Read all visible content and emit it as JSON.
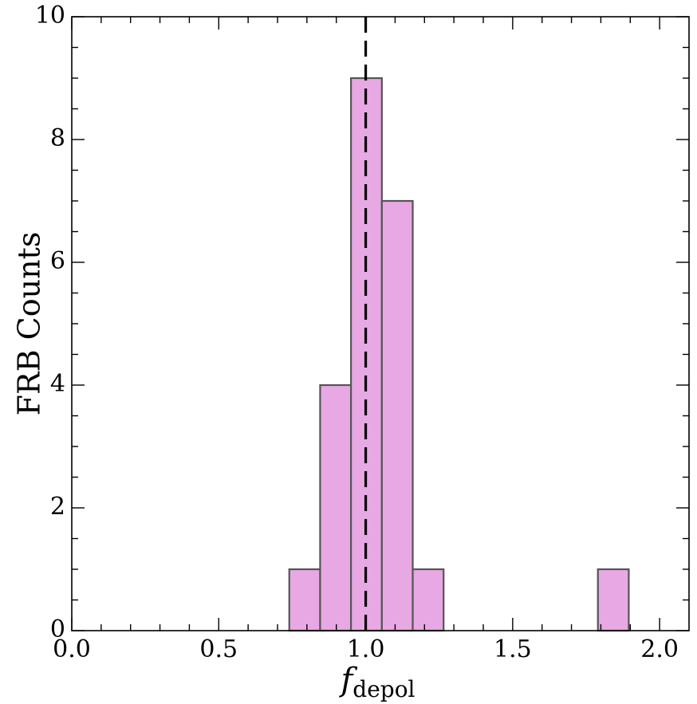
{
  "chart_data": {
    "type": "bar",
    "chart_kind": "histogram",
    "title": "",
    "xlabel_main": "f",
    "xlabel_sub": "depol",
    "ylabel": "FRB Counts",
    "xlim": [
      0.0,
      2.1
    ],
    "ylim": [
      0,
      10
    ],
    "x_major_ticks": [
      0.0,
      0.5,
      1.0,
      1.5,
      2.0
    ],
    "x_tick_labels": [
      "0.0",
      "0.5",
      "1.0",
      "1.5",
      "2.0"
    ],
    "y_major_ticks": [
      0,
      2,
      4,
      6,
      8,
      10
    ],
    "y_tick_labels": [
      "0",
      "2",
      "4",
      "6",
      "8",
      "10"
    ],
    "bins": [
      {
        "x0": 0.74,
        "x1": 0.845,
        "count": 1
      },
      {
        "x0": 0.845,
        "x1": 0.95,
        "count": 4
      },
      {
        "x0": 0.95,
        "x1": 1.055,
        "count": 9
      },
      {
        "x0": 1.055,
        "x1": 1.16,
        "count": 7
      },
      {
        "x0": 1.16,
        "x1": 1.265,
        "count": 1
      },
      {
        "x0": 1.79,
        "x1": 1.895,
        "count": 1
      }
    ],
    "reference_line": {
      "x": 1.0,
      "style": "dashed",
      "color": "#000000"
    },
    "bar_fill": "#e8a8e4",
    "bar_edge": "#555555",
    "grid": false,
    "ticks_direction": "in",
    "ticks_on_all_sides": true
  }
}
